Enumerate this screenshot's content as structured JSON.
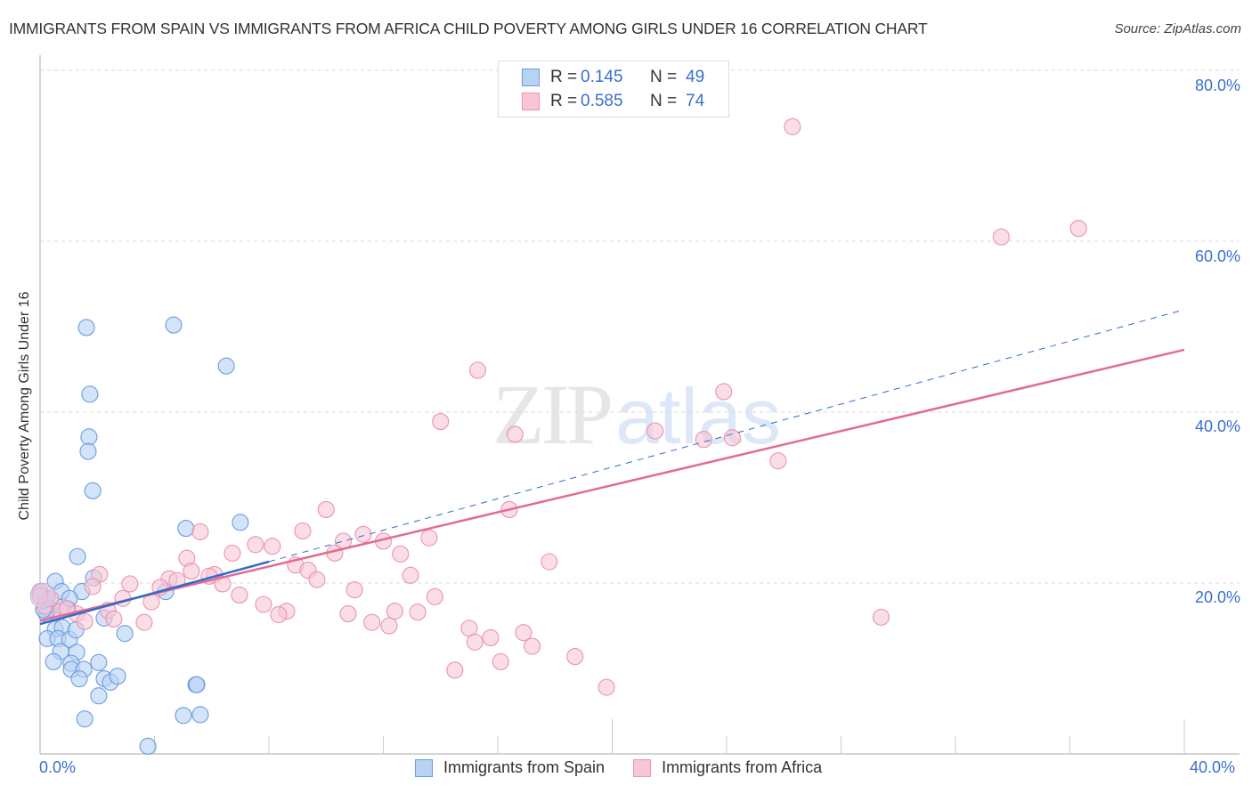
{
  "header": {
    "title": "IMMIGRANTS FROM SPAIN VS IMMIGRANTS FROM AFRICA CHILD POVERTY AMONG GIRLS UNDER 16 CORRELATION CHART",
    "source": "Source: ZipAtlas.com"
  },
  "watermark": {
    "zip": "ZIP",
    "atlas": "atlas"
  },
  "axes": {
    "ylabel": "Child Poverty Among Girls Under 16",
    "y_ticks": [
      "80.0%",
      "60.0%",
      "40.0%",
      "20.0%"
    ],
    "x_tick_left": "0.0%",
    "x_tick_right": "40.0%"
  },
  "legend_top": {
    "rows": [
      {
        "r_label": "R =",
        "r_value": "0.145",
        "n_label": "N =",
        "n_value": "49"
      },
      {
        "r_label": "R =",
        "r_value": "0.585",
        "n_label": "N =",
        "n_value": "74"
      }
    ]
  },
  "legend_bottom": {
    "items": [
      {
        "label": "Immigrants from Spain"
      },
      {
        "label": "Immigrants from Africa"
      }
    ]
  },
  "colors": {
    "spain_fill": "#b8d2f3",
    "spain_stroke": "#6a9be0",
    "spain_line": "#2f6ccc",
    "africa_fill": "#f8c6d5",
    "africa_stroke": "#e894b0",
    "africa_line": "#e36a92",
    "tick_label": "#3a6fcf"
  },
  "chart_data": {
    "type": "scatter",
    "title": "IMMIGRANTS FROM SPAIN VS IMMIGRANTS FROM AFRICA CHILD POVERTY AMONG GIRLS UNDER 16 CORRELATION CHART",
    "xlabel": "",
    "ylabel": "Child Poverty Among Girls Under 16",
    "xlim": [
      0,
      40
    ],
    "ylim": [
      0,
      85
    ],
    "x_unit": "%",
    "y_unit": "%",
    "y_ticks": [
      20,
      40,
      60,
      80
    ],
    "x_ticks_labeled": [
      0,
      40
    ],
    "grid": "horizontal dashed",
    "legend_position": "top-center and bottom",
    "series": [
      {
        "name": "Immigrants from Spain",
        "R": 0.145,
        "N": 49,
        "trend": {
          "x0": 0,
          "y0": 15.2,
          "x1": 8.0,
          "y1": 22.5,
          "dashed_extension_to": {
            "x": 40,
            "y": 52.0
          }
        },
        "points": [
          [
            1.62,
            49.9
          ],
          [
            4.67,
            50.2
          ],
          [
            6.51,
            45.4
          ],
          [
            1.74,
            42.1
          ],
          [
            1.71,
            37.1
          ],
          [
            1.68,
            35.4
          ],
          [
            1.84,
            30.8
          ],
          [
            7.0,
            27.1
          ],
          [
            5.1,
            26.4
          ],
          [
            1.31,
            23.1
          ],
          [
            0.53,
            20.2
          ],
          [
            1.46,
            19.0
          ],
          [
            0.75,
            19.0
          ],
          [
            1.87,
            20.6
          ],
          [
            4.39,
            19.0
          ],
          [
            0.16,
            18.3
          ],
          [
            0.31,
            17.0
          ],
          [
            0.78,
            17.2
          ],
          [
            0.97,
            17.0
          ],
          [
            0.22,
            16.4
          ],
          [
            2.24,
            15.9
          ],
          [
            0.53,
            14.6
          ],
          [
            0.25,
            13.5
          ],
          [
            0.78,
            14.8
          ],
          [
            0.62,
            13.5
          ],
          [
            1.03,
            13.4
          ],
          [
            1.25,
            14.5
          ],
          [
            2.96,
            14.1
          ],
          [
            0.72,
            12.0
          ],
          [
            1.28,
            11.9
          ],
          [
            0.47,
            10.8
          ],
          [
            2.05,
            10.7
          ],
          [
            1.09,
            10.6
          ],
          [
            1.09,
            9.9
          ],
          [
            1.53,
            9.9
          ],
          [
            1.37,
            8.8
          ],
          [
            2.24,
            8.8
          ],
          [
            2.46,
            8.4
          ],
          [
            2.71,
            9.1
          ],
          [
            5.45,
            8.1
          ],
          [
            5.48,
            8.1
          ],
          [
            2.05,
            6.8
          ],
          [
            1.56,
            4.1
          ],
          [
            5.01,
            4.5
          ],
          [
            5.6,
            4.6
          ],
          [
            3.77,
            0.9
          ],
          [
            0.0,
            19.0
          ],
          [
            1.03,
            18.2
          ],
          [
            0.12,
            16.9
          ]
        ]
      },
      {
        "name": "Immigrants from Africa",
        "R": 0.585,
        "N": 74,
        "trend": {
          "x0": 0,
          "y0": 15.6,
          "x1": 40,
          "y1": 47.3
        },
        "points": [
          [
            26.3,
            73.4
          ],
          [
            33.6,
            60.5
          ],
          [
            36.3,
            61.5
          ],
          [
            15.3,
            44.9
          ],
          [
            23.9,
            42.4
          ],
          [
            14.0,
            38.9
          ],
          [
            21.5,
            37.8
          ],
          [
            16.6,
            37.4
          ],
          [
            24.2,
            37.0
          ],
          [
            23.2,
            36.8
          ],
          [
            25.8,
            34.3
          ],
          [
            10.0,
            28.6
          ],
          [
            16.4,
            28.6
          ],
          [
            5.6,
            26.0
          ],
          [
            9.18,
            26.1
          ],
          [
            11.3,
            25.7
          ],
          [
            13.6,
            25.3
          ],
          [
            10.6,
            24.9
          ],
          [
            12.0,
            24.9
          ],
          [
            7.53,
            24.5
          ],
          [
            8.12,
            24.3
          ],
          [
            6.72,
            23.5
          ],
          [
            10.3,
            23.5
          ],
          [
            12.6,
            23.4
          ],
          [
            5.13,
            22.9
          ],
          [
            17.8,
            22.5
          ],
          [
            8.93,
            22.1
          ],
          [
            9.37,
            21.5
          ],
          [
            2.08,
            21.0
          ],
          [
            5.29,
            21.4
          ],
          [
            6.1,
            21.0
          ],
          [
            5.91,
            20.8
          ],
          [
            12.95,
            20.9
          ],
          [
            4.51,
            20.5
          ],
          [
            9.68,
            20.4
          ],
          [
            4.79,
            20.3
          ],
          [
            6.38,
            19.9
          ],
          [
            3.14,
            19.9
          ],
          [
            1.84,
            19.6
          ],
          [
            4.2,
            19.5
          ],
          [
            10.99,
            19.2
          ],
          [
            13.8,
            18.4
          ],
          [
            2.89,
            18.2
          ],
          [
            6.97,
            18.6
          ],
          [
            3.89,
            17.8
          ],
          [
            7.81,
            17.5
          ],
          [
            0.16,
            17.3
          ],
          [
            2.37,
            16.8
          ],
          [
            8.62,
            16.7
          ],
          [
            0.72,
            16.7
          ],
          [
            12.4,
            16.7
          ],
          [
            13.2,
            16.6
          ],
          [
            10.77,
            16.4
          ],
          [
            1.28,
            16.4
          ],
          [
            8.34,
            16.3
          ],
          [
            29.4,
            16.0
          ],
          [
            2.58,
            15.8
          ],
          [
            1.56,
            15.5
          ],
          [
            11.6,
            15.4
          ],
          [
            3.64,
            15.4
          ],
          [
            12.2,
            15.0
          ],
          [
            15.0,
            14.7
          ],
          [
            16.9,
            14.2
          ],
          [
            15.75,
            13.6
          ],
          [
            15.2,
            13.1
          ],
          [
            17.2,
            12.6
          ],
          [
            18.7,
            11.4
          ],
          [
            16.1,
            10.8
          ],
          [
            14.5,
            9.8
          ],
          [
            19.8,
            7.8
          ],
          [
            0.0,
            19.0
          ],
          [
            0.37,
            18.2
          ],
          [
            0.93,
            17.0
          ],
          [
            0.0,
            18.5
          ]
        ]
      }
    ]
  }
}
